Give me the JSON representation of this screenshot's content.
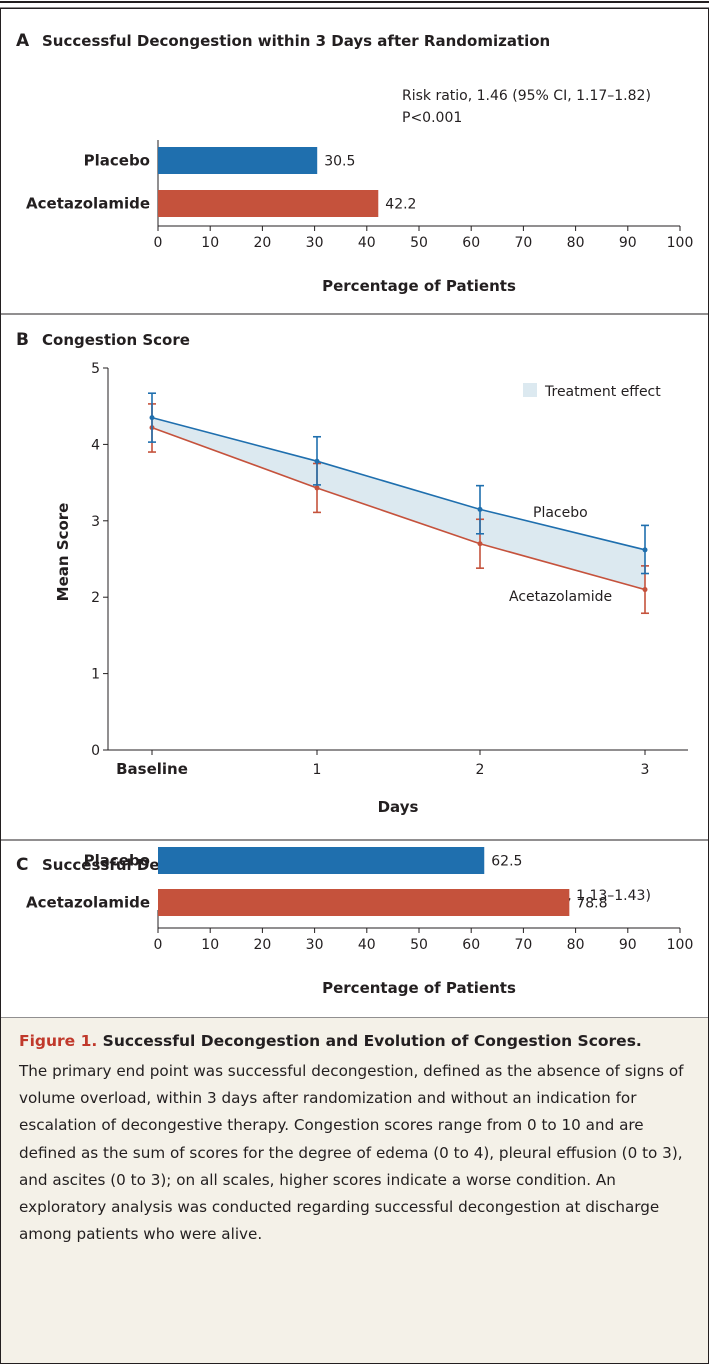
{
  "colors": {
    "placebo": "#1f6fae",
    "acetazolamide": "#c5523c",
    "band": "#dce9f0",
    "caption_bg": "#f4f1e8",
    "caption_label": "#c0392b"
  },
  "chart_data": [
    {
      "type": "bar",
      "panel": "A",
      "title": "Successful Decongestion within 3 Days after Randomization",
      "categories": [
        "Placebo",
        "Acetazolamide"
      ],
      "values": [
        30.5,
        42.2
      ],
      "value_labels": [
        "30.5",
        "42.2"
      ],
      "xlabel": "Percentage of Patients",
      "xticks": [
        "0",
        "10",
        "20",
        "30",
        "40",
        "50",
        "60",
        "70",
        "80",
        "90",
        "100"
      ],
      "xlim": [
        0,
        100
      ],
      "annotation_lines": [
        "Risk ratio, 1.46 (95% CI, 1.17–1.82)",
        "P<0.001"
      ]
    },
    {
      "type": "line",
      "panel": "B",
      "title": "Congestion Score",
      "xlabel": "Days",
      "ylabel": "Mean Score",
      "xticks": [
        "Baseline",
        "1",
        "2",
        "3"
      ],
      "yticks": [
        "0",
        "1",
        "2",
        "3",
        "4",
        "5"
      ],
      "ylim": [
        0,
        5
      ],
      "legend": "Treatment effect",
      "series": [
        {
          "name": "Placebo",
          "values": [
            4.35,
            3.78,
            3.15,
            2.62
          ],
          "err_low": [
            4.03,
            3.47,
            2.83,
            2.31
          ],
          "err_high": [
            4.67,
            4.1,
            3.46,
            2.94
          ]
        },
        {
          "name": "Acetazolamide",
          "values": [
            4.22,
            3.43,
            2.7,
            2.1
          ],
          "err_low": [
            3.9,
            3.11,
            2.38,
            1.79
          ],
          "err_high": [
            4.53,
            3.75,
            3.02,
            2.41
          ]
        }
      ]
    },
    {
      "type": "bar",
      "panel": "C",
      "title": "Successful Decongestion at Discharge",
      "categories": [
        "Placebo",
        "Acetazolamide"
      ],
      "values": [
        62.5,
        78.8
      ],
      "value_labels": [
        "62.5",
        "78.8"
      ],
      "xlabel": "Percentage of Patients",
      "xticks": [
        "0",
        "10",
        "20",
        "30",
        "40",
        "50",
        "60",
        "70",
        "80",
        "90",
        "100"
      ],
      "xlim": [
        0,
        100
      ],
      "annotation_lines": [
        "Risk ratio, 1.27 (95% CI, 1.13–1.43)"
      ]
    }
  ],
  "caption": {
    "label": "Figure 1.",
    "title": "Successful Decongestion and Evolution of Congestion Scores.",
    "body": "The primary end point was successful decongestion, defined as the absence of signs of volume overload, within 3 days after randomization and without an indication for escalation of decongestive therapy. Congestion scores range from 0 to 10 and are defined as the sum of scores for the degree of edema (0 to 4), pleural effusion (0 to 3), and ascites (0 to 3); on all scales, higher scores indicate a worse condition. An exploratory analysis was conducted regarding successful decongestion at discharge among patients who were alive."
  }
}
